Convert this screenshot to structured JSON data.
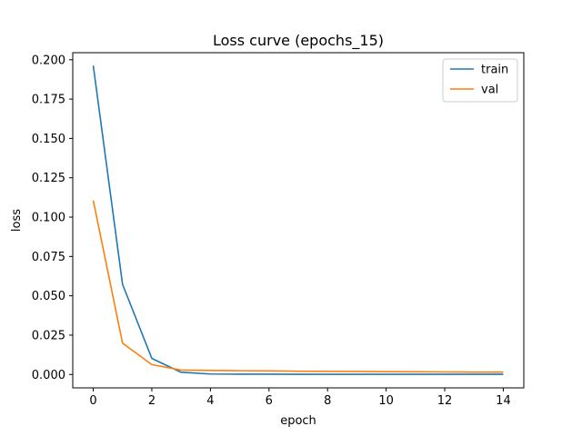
{
  "chart_data": {
    "type": "line",
    "title": "Loss curve (epochs_15)",
    "xlabel": "epoch",
    "ylabel": "loss",
    "xlim": [
      -0.7,
      14.7
    ],
    "ylim": [
      -0.0085,
      0.2045
    ],
    "x_ticks": [
      0,
      2,
      4,
      6,
      8,
      10,
      12,
      14
    ],
    "x_tick_labels": [
      "0",
      "2",
      "4",
      "6",
      "8",
      "10",
      "12",
      "14"
    ],
    "y_ticks": [
      0.0,
      0.025,
      0.05,
      0.075,
      0.1,
      0.125,
      0.15,
      0.175,
      0.2
    ],
    "y_tick_labels": [
      "0.000",
      "0.025",
      "0.050",
      "0.075",
      "0.100",
      "0.125",
      "0.150",
      "0.175",
      "0.200"
    ],
    "grid": false,
    "legend_position": "top-right",
    "x": [
      0,
      1,
      2,
      3,
      4,
      5,
      6,
      7,
      8,
      9,
      10,
      11,
      12,
      13,
      14
    ],
    "series": [
      {
        "name": "train",
        "color": "#1f77b4",
        "values": [
          0.1963,
          0.0573,
          0.0102,
          0.0014,
          0.0003,
          0.0002,
          0.0002,
          0.0001,
          0.0001,
          0.0001,
          0.0001,
          0.0001,
          0.0001,
          0.0001,
          0.0001
        ]
      },
      {
        "name": "val",
        "color": "#ff7f0e",
        "values": [
          0.1106,
          0.0199,
          0.0063,
          0.0028,
          0.0026,
          0.0024,
          0.0023,
          0.0021,
          0.002,
          0.0019,
          0.0018,
          0.0017,
          0.0016,
          0.0015,
          0.0015
        ]
      }
    ]
  }
}
